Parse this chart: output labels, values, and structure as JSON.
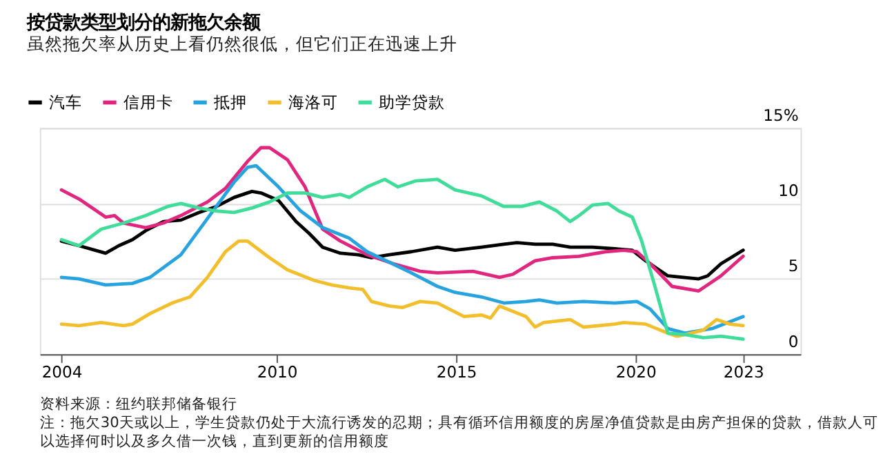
{
  "chart_data": {
    "type": "line",
    "title": "按贷款类型划分的新拖欠余额",
    "subtitle": "虽然拖欠率从历史上看仍然很低，但它们正在迅速上升",
    "annotations": [
      "资料来源：纽约联邦储备银行",
      "注：拖欠30天或以上，学生贷款仍处于大流行诱发的忍期；具有循环信用额度的房屋净值贷款是由房产担保的贷款，借款人可以选择何时以及多久借一次钱，直到更新的信用额度"
    ],
    "xlim": [
      2003.4,
      2024.6
    ],
    "xticks": [
      2004,
      2010,
      2015,
      2020,
      2023
    ],
    "ylim": [
      0,
      15
    ],
    "yticks": [
      0,
      5,
      10,
      {
        "value": 15,
        "label": "15%"
      }
    ],
    "grid": "y",
    "legend": "top left",
    "line_style": "solid",
    "marker": "none",
    "series": [
      {
        "name": "汽车",
        "color": "#000000",
        "x": [
          2004.0,
          2004.49,
          2005.23,
          2005.6,
          2005.98,
          2006.35,
          2006.84,
          2007.33,
          2007.83,
          2008.32,
          2008.81,
          2009.31,
          2009.56,
          2010.05,
          2010.54,
          2010.91,
          2011.28,
          2011.78,
          2012.27,
          2012.64,
          2013.14,
          2013.75,
          2014.48,
          2014.97,
          2015.71,
          2016.33,
          2016.7,
          2017.2,
          2017.69,
          2018.18,
          2018.8,
          2019.42,
          2019.91,
          2020.28,
          2020.9,
          2021.76,
          2022.01,
          2022.38,
          2023.0
        ],
        "values": [
          7.5,
          7.2,
          6.7,
          7.2,
          7.6,
          8.2,
          8.8,
          8.9,
          9.4,
          9.8,
          10.4,
          10.8,
          10.7,
          10.2,
          8.8,
          8.0,
          7.1,
          6.7,
          6.6,
          6.4,
          6.6,
          6.8,
          7.1,
          6.9,
          7.1,
          7.3,
          7.4,
          7.3,
          7.3,
          7.1,
          7.1,
          7.0,
          6.9,
          6.2,
          5.2,
          5.0,
          5.2,
          6.0,
          6.9
        ]
      },
      {
        "name": "信用卡",
        "color": "#e0267f",
        "x": [
          2004.0,
          2004.49,
          2005.23,
          2005.48,
          2005.73,
          2006.35,
          2006.84,
          2007.33,
          2008.07,
          2008.57,
          2009.19,
          2009.56,
          2009.8,
          2010.3,
          2010.79,
          2011.28,
          2011.78,
          2012.52,
          2013.26,
          2014.0,
          2014.48,
          2015.47,
          2016.21,
          2016.58,
          2017.2,
          2017.69,
          2018.43,
          2019.17,
          2019.67,
          2020.04,
          2020.41,
          2021.02,
          2021.76,
          2022.38,
          2023.0
        ],
        "values": [
          10.9,
          10.3,
          9.1,
          9.2,
          8.7,
          8.4,
          8.7,
          9.2,
          10.1,
          11.0,
          12.8,
          13.7,
          13.7,
          12.9,
          11.1,
          8.3,
          7.5,
          6.6,
          6.0,
          5.5,
          5.4,
          5.5,
          5.1,
          5.3,
          6.2,
          6.4,
          6.5,
          6.8,
          6.9,
          6.8,
          6.0,
          4.5,
          4.2,
          5.2,
          6.5
        ]
      },
      {
        "name": "抵押",
        "color": "#27a3e0",
        "x": [
          2004.0,
          2004.49,
          2005.23,
          2005.98,
          2006.47,
          2007.33,
          2008.07,
          2008.81,
          2009.19,
          2009.43,
          2010.05,
          2010.67,
          2011.28,
          2012.02,
          2012.52,
          2013.14,
          2013.75,
          2014.48,
          2014.97,
          2015.71,
          2016.33,
          2016.95,
          2017.32,
          2017.81,
          2018.55,
          2019.42,
          2020.04,
          2020.41,
          2020.9,
          2021.39,
          2022.13,
          2023.0
        ],
        "values": [
          5.1,
          5.0,
          4.6,
          4.7,
          5.1,
          6.6,
          9.0,
          11.4,
          12.4,
          12.5,
          11.1,
          9.5,
          8.4,
          7.7,
          6.8,
          6.1,
          5.4,
          4.5,
          4.1,
          3.8,
          3.4,
          3.5,
          3.6,
          3.4,
          3.5,
          3.4,
          3.5,
          3.0,
          1.7,
          1.4,
          1.7,
          2.5
        ]
      },
      {
        "name": "海洛可",
        "color": "#f2be2b",
        "x": [
          2004.0,
          2004.49,
          2005.11,
          2005.73,
          2005.98,
          2006.47,
          2007.09,
          2007.58,
          2008.07,
          2008.57,
          2008.94,
          2009.19,
          2009.8,
          2010.3,
          2011.04,
          2011.53,
          2012.02,
          2012.4,
          2012.64,
          2013.14,
          2013.51,
          2014.0,
          2014.48,
          2015.22,
          2015.71,
          2015.96,
          2016.21,
          2016.95,
          2017.2,
          2017.44,
          2018.18,
          2018.55,
          2019.42,
          2019.67,
          2020.28,
          2020.9,
          2021.15,
          2021.39,
          2021.89,
          2022.26,
          2022.63,
          2023.0
        ],
        "values": [
          2.0,
          1.9,
          2.1,
          1.9,
          2.0,
          2.7,
          3.4,
          3.8,
          5.1,
          6.8,
          7.5,
          7.5,
          6.4,
          5.6,
          4.9,
          4.6,
          4.4,
          4.3,
          3.5,
          3.2,
          3.1,
          3.5,
          3.4,
          2.5,
          2.6,
          2.4,
          3.2,
          2.5,
          1.8,
          2.1,
          2.3,
          1.8,
          2.0,
          2.1,
          2.0,
          1.4,
          1.2,
          1.3,
          1.6,
          2.3,
          2.0,
          1.9
        ]
      },
      {
        "name": "助学贷款",
        "color": "#3fdc9a",
        "x": [
          2004.0,
          2004.49,
          2005.11,
          2005.73,
          2006.35,
          2006.96,
          2007.33,
          2007.83,
          2008.32,
          2008.81,
          2009.31,
          2009.8,
          2010.3,
          2010.79,
          2011.28,
          2011.78,
          2012.02,
          2012.52,
          2013.01,
          2013.38,
          2013.88,
          2014.48,
          2014.97,
          2015.71,
          2016.33,
          2016.83,
          2017.32,
          2017.81,
          2018.18,
          2018.43,
          2018.8,
          2019.23,
          2019.54,
          2019.91,
          2020.16,
          2020.53,
          2020.9,
          2021.39,
          2021.89,
          2022.38,
          2023.0
        ],
        "values": [
          7.6,
          7.2,
          8.3,
          8.7,
          9.2,
          9.8,
          10.0,
          9.7,
          9.5,
          9.4,
          9.7,
          10.1,
          10.7,
          10.7,
          10.4,
          10.6,
          10.4,
          11.1,
          11.6,
          11.1,
          11.5,
          11.6,
          10.9,
          10.5,
          9.8,
          9.8,
          10.1,
          9.5,
          8.8,
          9.2,
          9.9,
          10.0,
          9.5,
          9.1,
          7.6,
          4.6,
          1.4,
          1.3,
          1.1,
          1.2,
          1.0
        ]
      }
    ]
  }
}
